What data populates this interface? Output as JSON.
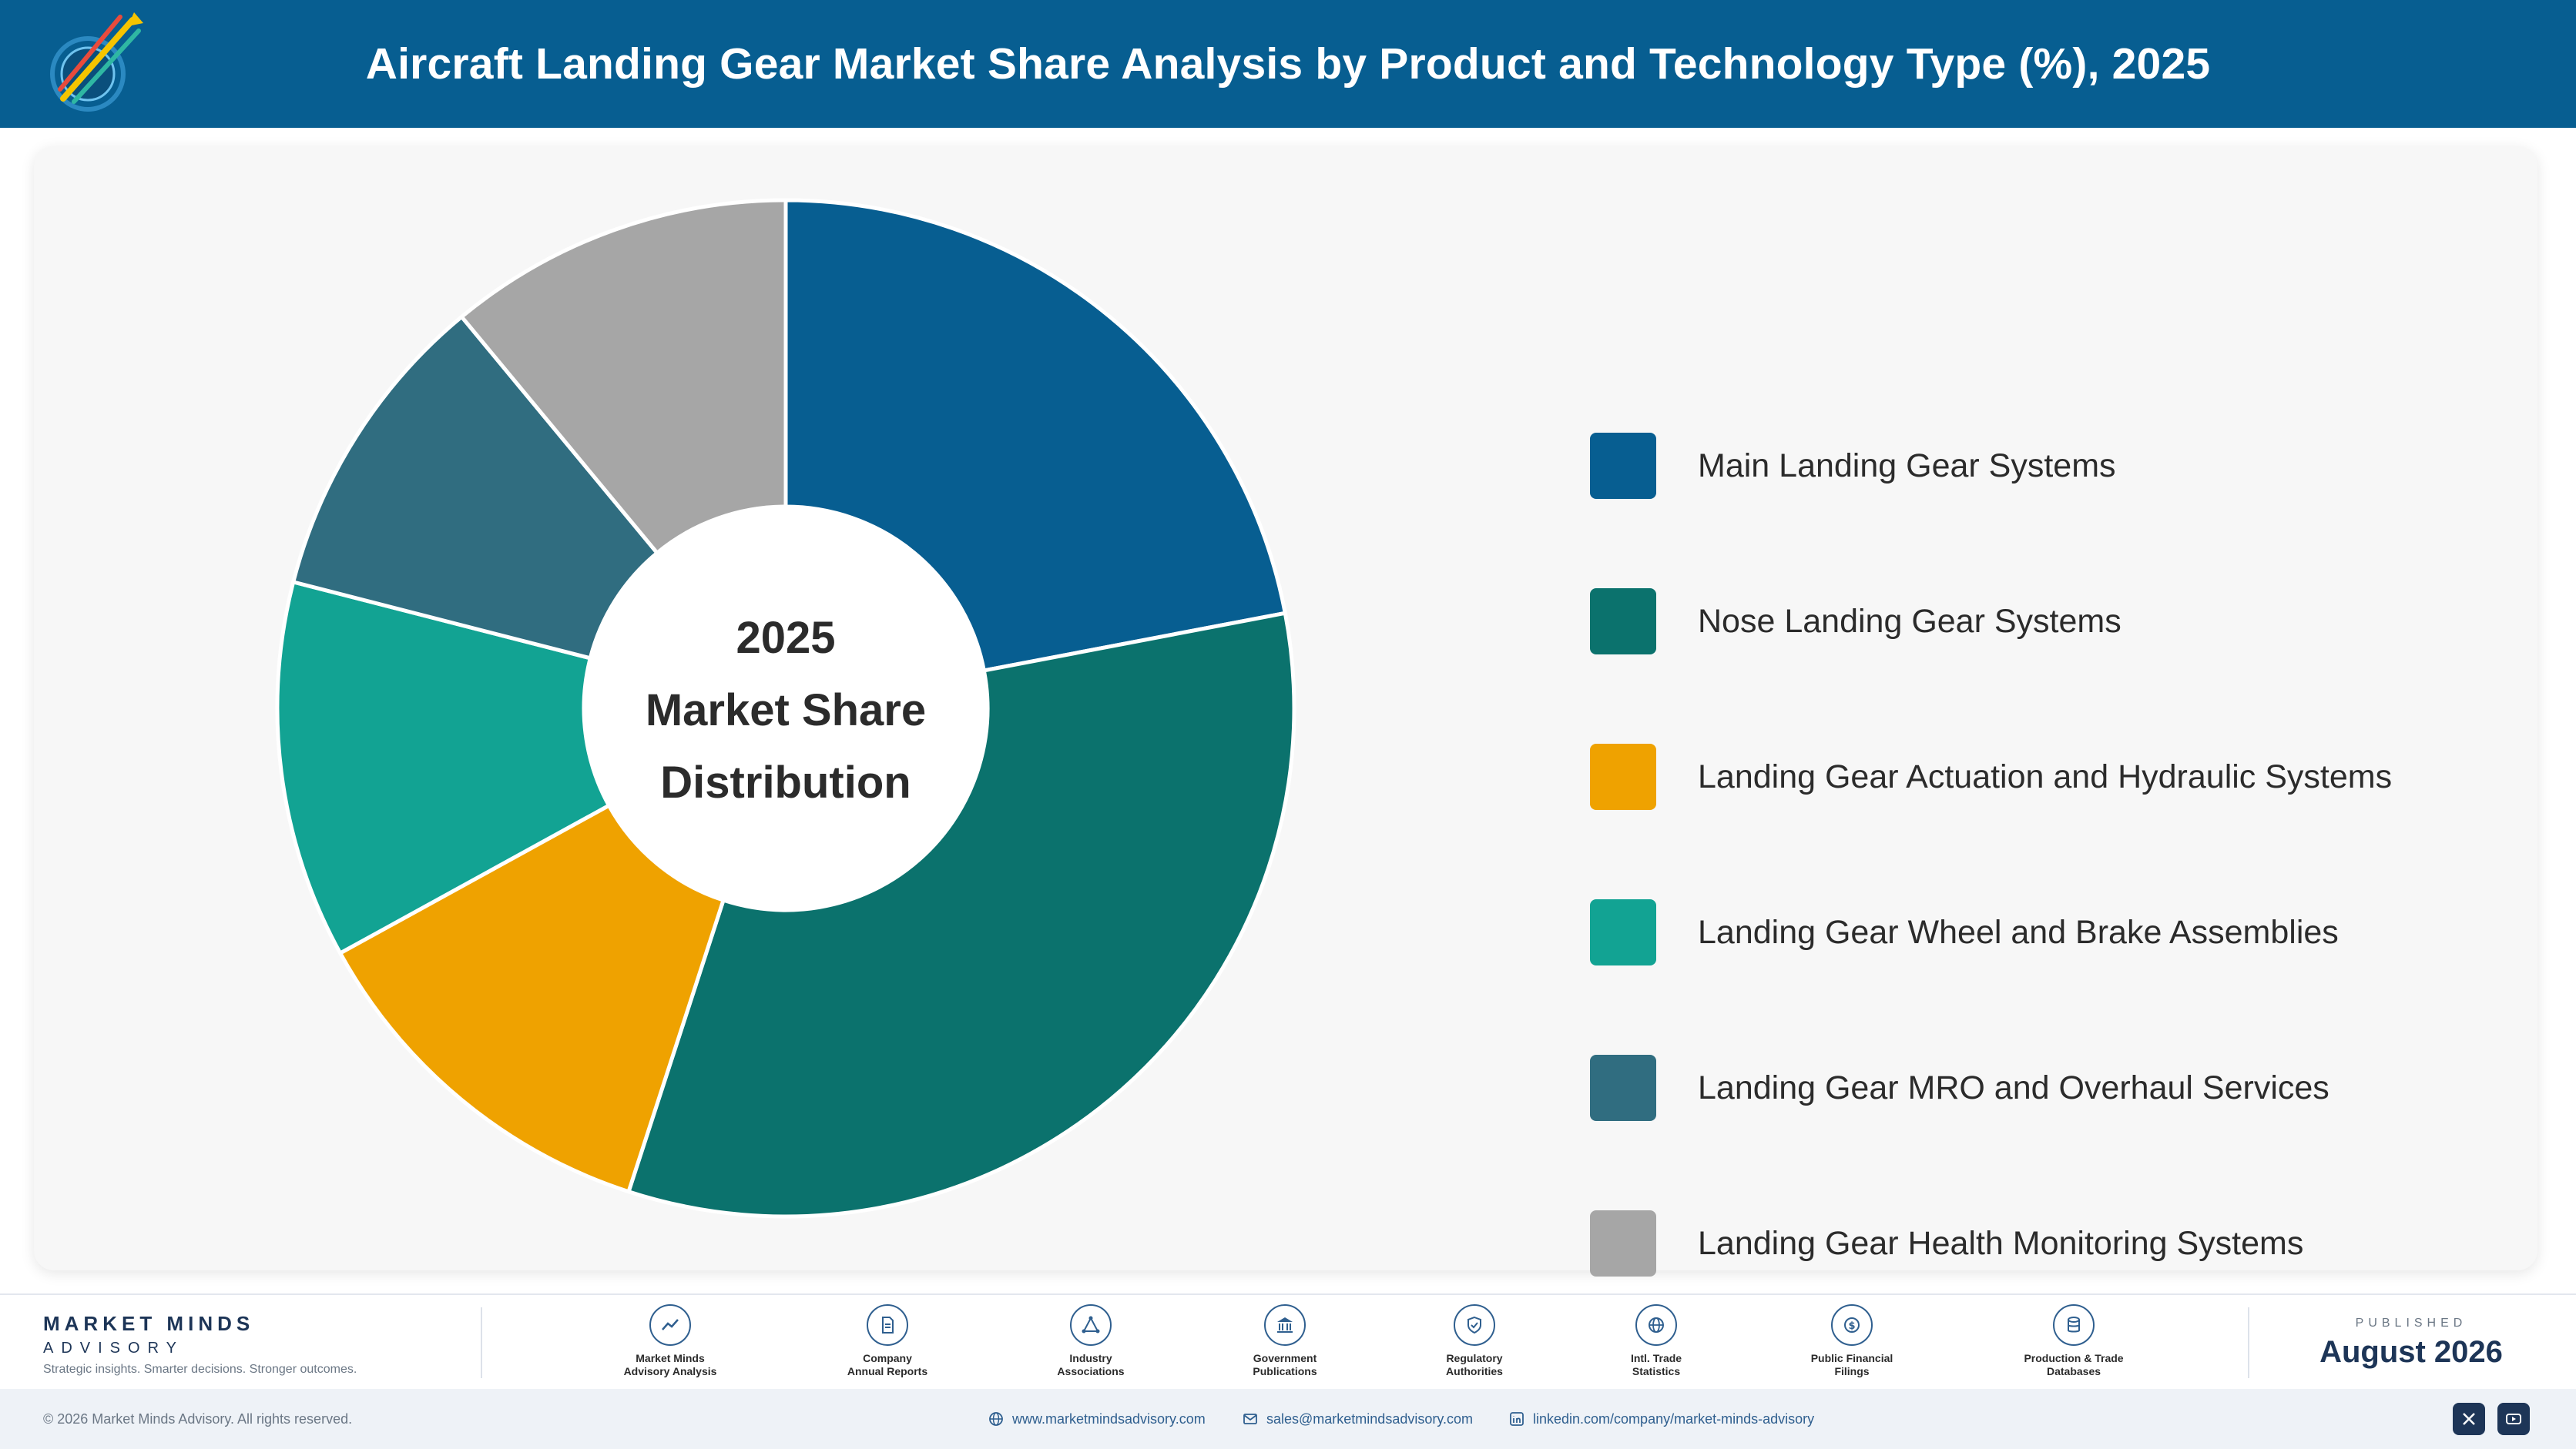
{
  "header": {
    "title": "Aircraft Landing Gear Market Share Analysis by Product and Technology Type (%), 2025"
  },
  "chart_data": {
    "type": "pie",
    "variant": "donut",
    "title": "Aircraft Landing Gear Market Share Analysis by Product and Technology Type (%), 2025",
    "center_text": [
      "2025",
      "Market Share",
      "Distribution"
    ],
    "legend_position": "right",
    "categories": [
      "Main Landing Gear Systems",
      "Nose Landing Gear Systems",
      "Landing Gear Actuation and Hydraulic Systems",
      "Landing Gear Wheel and Brake Assemblies",
      "Landing Gear MRO and Overhaul Services",
      "Landing Gear Health Monitoring Systems"
    ],
    "values": [
      22.0,
      33.0,
      12.0,
      12.0,
      10.0,
      11.0
    ],
    "colors": [
      "#075e91",
      "#0b726d",
      "#efa200",
      "#12a393",
      "#306d80",
      "#a6a6a6"
    ]
  },
  "footer": {
    "brand_name": "MARKET MINDS",
    "brand_sub": "ADVISORY",
    "brand_tagline": "Strategic insights. Smarter decisions. Stronger outcomes.",
    "sources": [
      {
        "line1": "Market Minds",
        "line2": "Advisory Analysis",
        "icon": "trend-chart-icon"
      },
      {
        "line1": "Company",
        "line2": "Annual Reports",
        "icon": "document-icon"
      },
      {
        "line1": "Industry",
        "line2": "Associations",
        "icon": "network-icon"
      },
      {
        "line1": "Government",
        "line2": "Publications",
        "icon": "government-building-icon"
      },
      {
        "line1": "Regulatory",
        "line2": "Authorities",
        "icon": "shield-check-icon"
      },
      {
        "line1": "Intl. Trade",
        "line2": "Statistics",
        "icon": "globe-icon"
      },
      {
        "line1": "Public Financial",
        "line2": "Filings",
        "icon": "dollar-coin-icon"
      },
      {
        "line1": "Production & Trade",
        "line2": "Databases",
        "icon": "database-icon"
      }
    ],
    "published_caption": "PUBLISHED",
    "published_date": "August 2026"
  },
  "bottom_bar": {
    "copyright": "© 2026 Market Minds Advisory. All rights reserved.",
    "website": "www.marketmindsadvisory.com",
    "email": "sales@marketmindsadvisory.com",
    "linkedin": "linkedin.com/company/market-minds-advisory"
  }
}
